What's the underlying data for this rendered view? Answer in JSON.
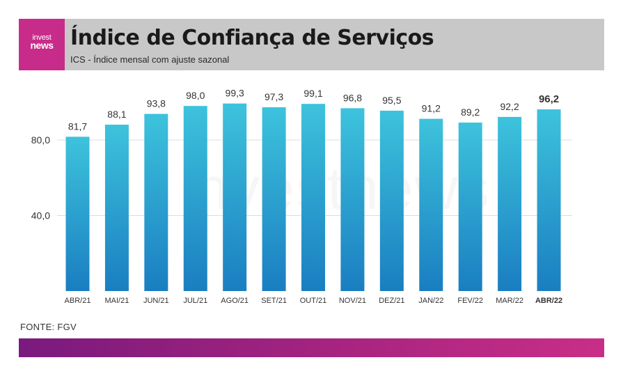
{
  "logo": {
    "line1": "invest",
    "line2": "news",
    "brand_color": "#c72c8a"
  },
  "header": {
    "title": "Índice de Confiança de Serviços",
    "subtitle": "ICS - Índice mensal com ajuste sazonal"
  },
  "watermark": "investnews",
  "source": "FONTE: FGV",
  "chart_data": {
    "type": "bar",
    "categories": [
      "ABR/21",
      "MAI/21",
      "JUN/21",
      "JUL/21",
      "AGO/21",
      "SET/21",
      "OUT/21",
      "NOV/21",
      "DEZ/21",
      "JAN/22",
      "FEV/22",
      "MAR/22",
      "ABR/22"
    ],
    "values": [
      81.7,
      88.1,
      93.8,
      98.0,
      99.3,
      97.3,
      99.1,
      96.8,
      95.5,
      91.2,
      89.2,
      92.2,
      96.2
    ],
    "value_labels": [
      "81,7",
      "88,1",
      "93,8",
      "98,0",
      "99,3",
      "97,3",
      "99,1",
      "96,8",
      "95,5",
      "91,2",
      "89,2",
      "92,2",
      "96,2"
    ],
    "highlight_index": 12,
    "yticks": [
      40,
      80
    ],
    "ytick_labels": [
      "40,0",
      "80,0"
    ],
    "ylim": [
      0,
      100
    ],
    "grid": true,
    "bar_color_top": "#3dc3dc",
    "bar_color_bottom": "#1a7ec1"
  }
}
